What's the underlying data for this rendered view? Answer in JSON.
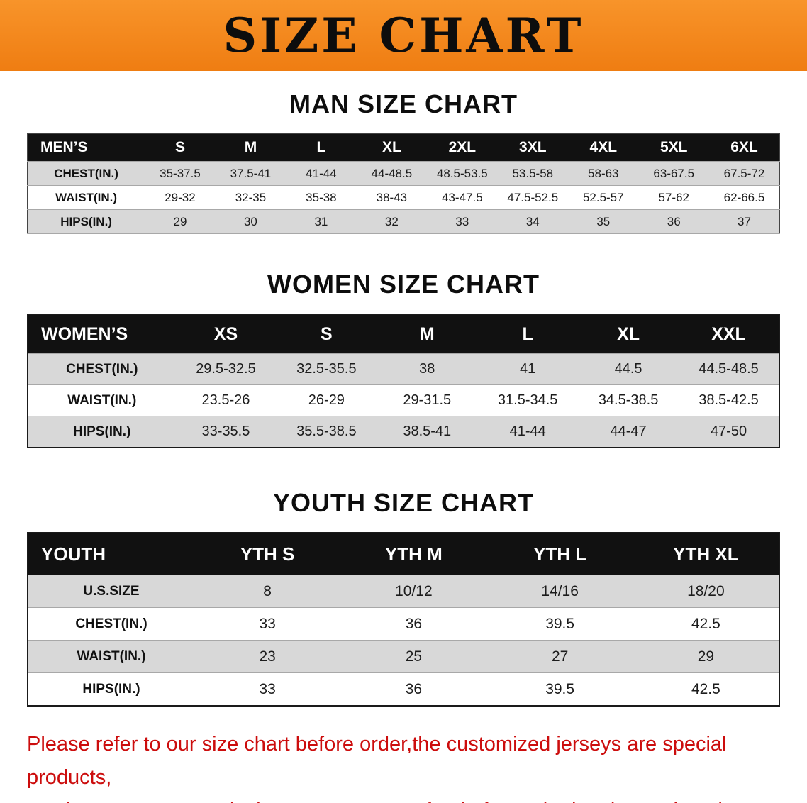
{
  "banner": {
    "title": "SIZE CHART",
    "bg_color": "#f6861f",
    "text_color": "#0d0d0d"
  },
  "sections": [
    {
      "id": "men",
      "title": "MAN SIZE CHART",
      "table": {
        "header": [
          "MEN’S",
          "S",
          "M",
          "L",
          "XL",
          "2XL",
          "3XL",
          "4XL",
          "5XL",
          "6XL"
        ],
        "rows": [
          [
            "CHEST(IN.)",
            "35-37.5",
            "37.5-41",
            "41-44",
            "44-48.5",
            "48.5-53.5",
            "53.5-58",
            "58-63",
            "63-67.5",
            "67.5-72"
          ],
          [
            "WAIST(IN.)",
            "29-32",
            "32-35",
            "35-38",
            "38-43",
            "43-47.5",
            "47.5-52.5",
            "52.5-57",
            "57-62",
            "62-66.5"
          ],
          [
            "HIPS(IN.)",
            "29",
            "30",
            "31",
            "32",
            "33",
            "34",
            "35",
            "36",
            "37"
          ]
        ]
      }
    },
    {
      "id": "women",
      "title": "WOMEN SIZE CHART",
      "table": {
        "header": [
          "WOMEN’S",
          "XS",
          "S",
          "M",
          "L",
          "XL",
          "XXL"
        ],
        "rows": [
          [
            "CHEST(IN.)",
            "29.5-32.5",
            "32.5-35.5",
            "38",
            "41",
            "44.5",
            "44.5-48.5"
          ],
          [
            "WAIST(IN.)",
            "23.5-26",
            "26-29",
            "29-31.5",
            "31.5-34.5",
            "34.5-38.5",
            "38.5-42.5"
          ],
          [
            "HIPS(IN.)",
            "33-35.5",
            "35.5-38.5",
            "38.5-41",
            "41-44",
            "44-47",
            "47-50"
          ]
        ]
      }
    },
    {
      "id": "youth",
      "title": "YOUTH SIZE CHART",
      "table": {
        "header": [
          "YOUTH",
          "YTH S",
          "YTH M",
          "YTH L",
          "YTH XL"
        ],
        "rows": [
          [
            "U.S.SIZE",
            "8",
            "10/12",
            "14/16",
            "18/20"
          ],
          [
            "CHEST(IN.)",
            "33",
            "36",
            "39.5",
            "42.5"
          ],
          [
            "WAIST(IN.)",
            "23",
            "25",
            "27",
            "29"
          ],
          [
            "HIPS(IN.)",
            "33",
            "36",
            "39.5",
            "42.5"
          ]
        ]
      }
    }
  ],
  "footer": {
    "text_color": "#cc0d0d",
    "lines": [
      "Please refer to our size chart before order,the customized jerseys are special products,",
      "we don't accept cancel, change, teturn or refund after order has been placed!"
    ]
  }
}
